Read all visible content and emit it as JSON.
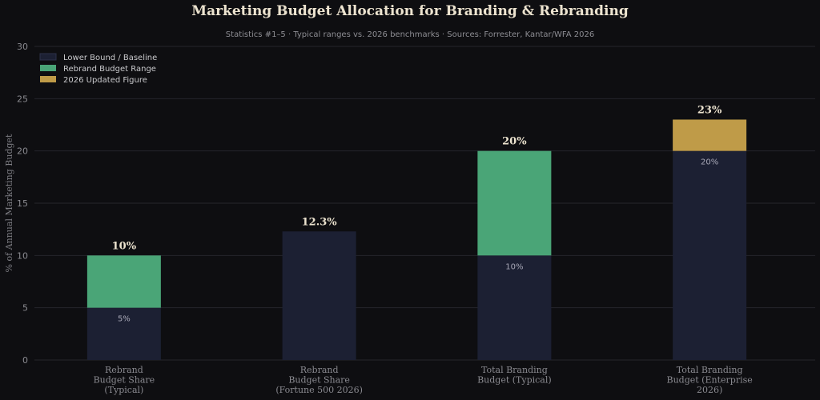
{
  "chart_data": {
    "type": "bar",
    "stacked": true,
    "title": "Marketing Budget Allocation for Branding & Rebranding",
    "subtitle": "Statistics #1–5 · Typical ranges vs. 2026 benchmarks · Sources: Forrester, Kantar/WFA 2026",
    "ylabel": "% of Annual Marketing Budget",
    "xlabel": "",
    "ylim": [
      0,
      30
    ],
    "yticks": [
      0,
      5,
      10,
      15,
      20,
      25,
      30
    ],
    "grid": true,
    "legend_position": "top-left",
    "categories": [
      [
        "Rebrand",
        "Budget Share",
        "(Typical)"
      ],
      [
        "Rebrand",
        "Budget Share",
        "(Fortune 500 2026)"
      ],
      [
        "Total Branding",
        "Budget (Typical)"
      ],
      [
        "Total Branding",
        "Budget (Enterprise",
        "2026)"
      ]
    ],
    "series": [
      {
        "name": "Lower Bound / Baseline",
        "color": "#1c2033",
        "values": [
          5,
          12.3,
          10,
          20
        ]
      },
      {
        "name": "Rebrand Budget Range",
        "color": "#4aa577",
        "values": [
          5,
          0,
          10,
          0
        ]
      },
      {
        "name": "2026 Updated Figure",
        "color": "#bf9b48",
        "values": [
          0,
          0,
          0,
          3
        ]
      }
    ],
    "totals": [
      10,
      12.3,
      20,
      23
    ],
    "total_labels": [
      "10%",
      "12.3%",
      "20%",
      "23%"
    ],
    "inner_labels": [
      "5%",
      "",
      "10%",
      "20%"
    ]
  }
}
